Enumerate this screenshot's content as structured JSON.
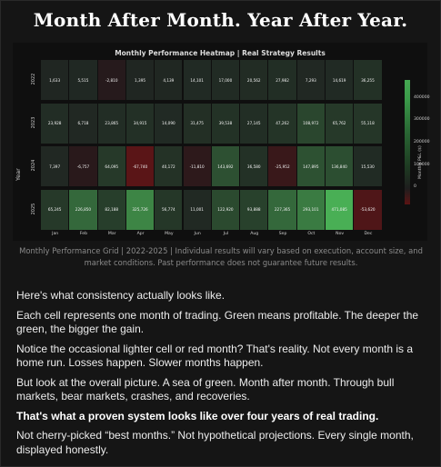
{
  "headline": "Month After Month. Year After Year.",
  "chart_data": {
    "type": "heatmap",
    "title": "Monthly Performance Heatmap | Real Strategy Results",
    "ylabel": "Year",
    "colorbar_label": "Monthly P&L ($)",
    "colorbar_ticks": [
      "400000",
      "300000",
      "200000",
      "100000",
      "0"
    ],
    "rows": [
      "2022",
      "2023",
      "2024",
      "2025"
    ],
    "columns": [
      "Jan",
      "Feb",
      "Mar",
      "Apr",
      "May",
      "Jun",
      "Jul",
      "Aug",
      "Sep",
      "Oct",
      "Nov",
      "Dec"
    ],
    "values": [
      [
        1633,
        5515,
        -2810,
        1395,
        4139,
        14101,
        17000,
        20562,
        27982,
        7293,
        14619,
        36255
      ],
      [
        23928,
        6718,
        23865,
        34915,
        14090,
        31475,
        39538,
        27145,
        47262,
        108972,
        65762,
        55118
      ],
      [
        7397,
        -6757,
        64095,
        -67740,
        40172,
        -11810,
        143692,
        36580,
        -25952,
        147895,
        136840,
        15530
      ],
      [
        65245,
        226850,
        82188,
        325726,
        56774,
        11001,
        122920,
        93888,
        227365,
        293101,
        471085,
        -53620
      ]
    ],
    "labels": [
      [
        "1,633",
        "5,515",
        "-2,810",
        "1,395",
        "4,139",
        "14,101",
        "17,000",
        "20,562",
        "27,982",
        "7,293",
        "14,619",
        "36,255"
      ],
      [
        "23,928",
        "6,718",
        "23,865",
        "34,915",
        "14,090",
        "31,475",
        "39,538",
        "27,145",
        "47,262",
        "108,972",
        "65,762",
        "55,118"
      ],
      [
        "7,397",
        "-6,757",
        "64,095",
        "-67,740",
        "40,172",
        "-11,810",
        "143,692",
        "36,580",
        "-25,952",
        "147,895",
        "136,840",
        "15,530"
      ],
      [
        "65,245",
        "226,850",
        "82,188",
        "325,726",
        "56,774",
        "11,001",
        "122,920",
        "93,888",
        "227,365",
        "293,101",
        "471,085",
        "-53,620"
      ]
    ],
    "color_range": [
      -75000,
      480000
    ]
  },
  "caption": "Monthly Performance Grid | 2022-2025 | Individual results will vary based on execution, account size, and market conditions. Past performance does not guarantee future results.",
  "paragraphs": [
    {
      "text": "Here's what consistency actually looks like.",
      "bold": false
    },
    {
      "text": "Each cell represents one month of trading. Green means profitable. The deeper the green, the bigger the gain.",
      "bold": false
    },
    {
      "text": "Notice the occasional lighter cell or red month? That's reality. Not every month is a home run. Losses happen. Slower months happen.",
      "bold": false
    },
    {
      "text": "But look at the overall picture. A sea of green. Month after month. Through bull markets, bear markets, crashes, and recoveries.",
      "bold": false
    },
    {
      "text": "That's what a proven system looks like over four years of real trading.",
      "bold": true
    },
    {
      "text": "Not cherry-picked “best months.” Not hypothetical projections. Every single month, displayed honestly.",
      "bold": false
    }
  ]
}
